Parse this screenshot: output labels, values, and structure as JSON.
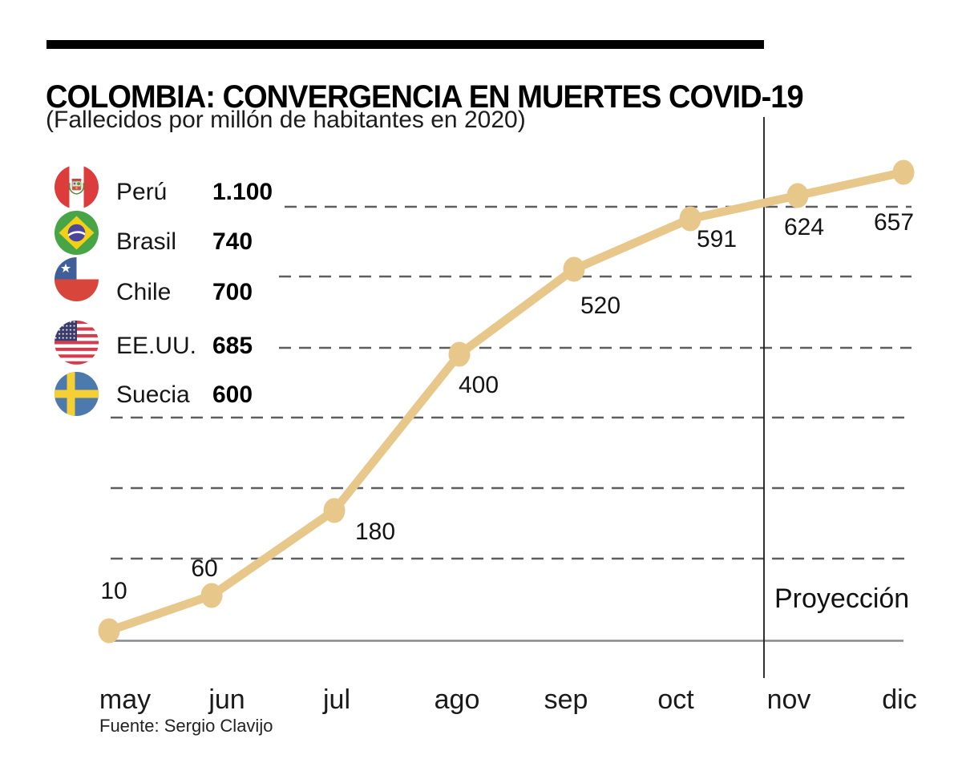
{
  "header": {
    "title": "COLOMBIA: CONVERGENCIA EN MUERTES COVID-19",
    "subtitle": "(Fallecidos por millón de habitantes en 2020)"
  },
  "legend": {
    "items": [
      {
        "country": "Perú",
        "value": "1.100",
        "flag": "peru-flag"
      },
      {
        "country": "Brasil",
        "value": "740",
        "flag": "brazil-flag"
      },
      {
        "country": "Chile",
        "value": "700",
        "flag": "chile-flag"
      },
      {
        "country": "EE.UU.",
        "value": "685",
        "flag": "usa-flag"
      },
      {
        "country": "Suecia",
        "value": "600",
        "flag": "sweden-flag"
      }
    ]
  },
  "chart_data": {
    "type": "line",
    "title": "COLOMBIA: CONVERGENCIA EN MUERTES COVID-19",
    "subtitle": "(Fallecidos por millón de habitantes en 2020)",
    "x": [
      "may",
      "jun",
      "jul",
      "ago",
      "sep",
      "oct",
      "nov",
      "dic"
    ],
    "values": [
      10,
      60,
      180,
      400,
      520,
      591,
      624,
      657
    ],
    "value_labels": [
      "10",
      "60",
      "180",
      "400",
      "520",
      "591",
      "624",
      "657"
    ],
    "projection_label": "Proyección",
    "projection_boundary_month": "nov",
    "projection_months": [
      "nov",
      "dic"
    ],
    "comparison_countries": [
      {
        "name": "Perú",
        "deaths_per_million": 1100
      },
      {
        "name": "Brasil",
        "deaths_per_million": 740
      },
      {
        "name": "Chile",
        "deaths_per_million": 700
      },
      {
        "name": "EE.UU.",
        "deaths_per_million": 685
      },
      {
        "name": "Suecia",
        "deaths_per_million": 600
      }
    ],
    "line_color": "#e7c78a",
    "grid": "dashed-horizontal",
    "y_gridlines_estimated": [
      600,
      500,
      400,
      300,
      200,
      100
    ],
    "ylim": [
      0,
      700
    ],
    "y_axis_labels_visible": false
  },
  "footer": {
    "source": "Fuente: Sergio Clavijo"
  }
}
